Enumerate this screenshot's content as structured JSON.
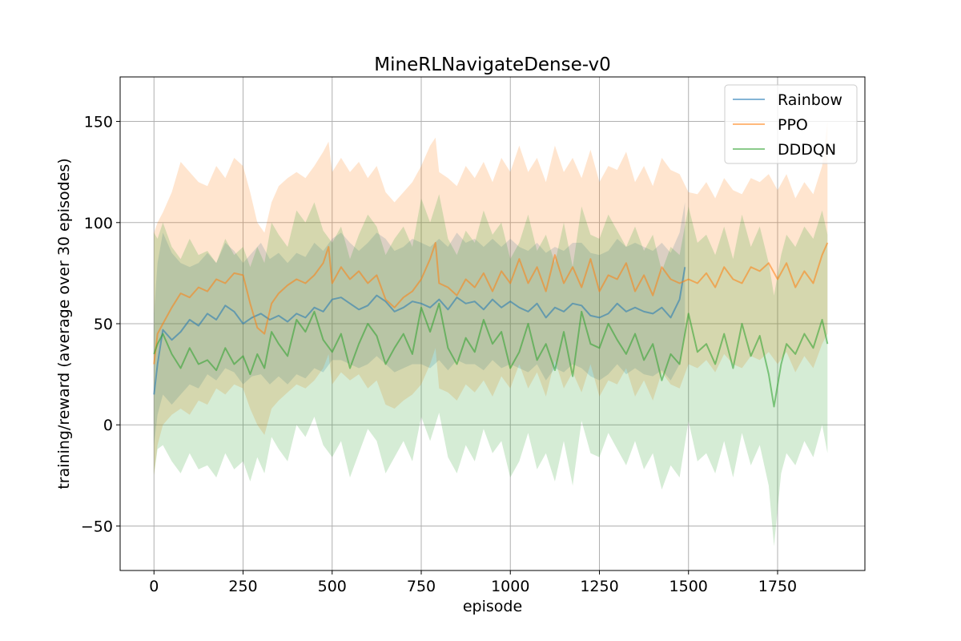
{
  "chart_data": {
    "type": "line",
    "title": "MineRLNavigateDense-v0",
    "xlabel": "episode",
    "ylabel": "training/reward (average over 30 episodes)",
    "xlim": [
      -95,
      1995
    ],
    "ylim": [
      -72,
      172
    ],
    "xticks": [
      0,
      250,
      500,
      750,
      1000,
      1250,
      1500,
      1750
    ],
    "yticks": [
      -50,
      0,
      50,
      100,
      150
    ],
    "xtick_labels": [
      "0",
      "250",
      "500",
      "750",
      "1000",
      "1250",
      "1500",
      "1750"
    ],
    "ytick_labels": [
      "−50",
      "0",
      "50",
      "100",
      "150"
    ],
    "grid": true,
    "legend_position": "top-right",
    "series": [
      {
        "name": "Rainbow",
        "color": "#1f77b4",
        "x": [
          0,
          10,
          25,
          50,
          75,
          100,
          125,
          150,
          175,
          200,
          225,
          250,
          275,
          300,
          325,
          350,
          375,
          400,
          425,
          450,
          475,
          500,
          525,
          550,
          575,
          600,
          625,
          650,
          675,
          700,
          725,
          750,
          775,
          800,
          825,
          850,
          875,
          900,
          925,
          950,
          975,
          1000,
          1025,
          1050,
          1075,
          1100,
          1125,
          1150,
          1175,
          1200,
          1225,
          1250,
          1275,
          1300,
          1325,
          1350,
          1375,
          1400,
          1425,
          1450,
          1475,
          1490
        ],
        "y": [
          15,
          30,
          47,
          42,
          46,
          52,
          49,
          55,
          52,
          59,
          56,
          50,
          53,
          55,
          52,
          54,
          51,
          55,
          53,
          58,
          56,
          62,
          63,
          60,
          57,
          59,
          64,
          61,
          56,
          58,
          61,
          60,
          58,
          62,
          57,
          63,
          60,
          61,
          57,
          62,
          58,
          61,
          58,
          56,
          60,
          53,
          58,
          56,
          60,
          59,
          54,
          53,
          55,
          60,
          56,
          58,
          56,
          55,
          58,
          53,
          62,
          78
        ],
        "upper": [
          55,
          80,
          95,
          85,
          80,
          78,
          80,
          85,
          80,
          90,
          86,
          80,
          85,
          90,
          82,
          85,
          80,
          85,
          83,
          90,
          86,
          92,
          95,
          90,
          86,
          90,
          95,
          92,
          86,
          88,
          92,
          90,
          88,
          92,
          88,
          95,
          90,
          92,
          88,
          92,
          88,
          92,
          88,
          86,
          90,
          85,
          88,
          86,
          90,
          90,
          85,
          84,
          86,
          92,
          88,
          90,
          88,
          86,
          90,
          85,
          95,
          110
        ],
        "lower": [
          -10,
          5,
          15,
          10,
          15,
          20,
          18,
          25,
          22,
          28,
          26,
          20,
          24,
          25,
          20,
          24,
          20,
          25,
          23,
          28,
          26,
          32,
          32,
          30,
          28,
          30,
          34,
          30,
          26,
          28,
          30,
          30,
          28,
          32,
          27,
          32,
          30,
          30,
          27,
          32,
          28,
          30,
          28,
          26,
          30,
          22,
          28,
          26,
          30,
          28,
          24,
          22,
          25,
          30,
          25,
          28,
          25,
          24,
          27,
          22,
          30,
          45
        ]
      },
      {
        "name": "PPO",
        "color": "#ff7f0e",
        "x": [
          0,
          10,
          25,
          50,
          75,
          100,
          125,
          150,
          175,
          200,
          225,
          250,
          270,
          290,
          310,
          330,
          350,
          375,
          400,
          425,
          450,
          475,
          490,
          500,
          525,
          550,
          575,
          600,
          625,
          650,
          675,
          700,
          725,
          750,
          775,
          790,
          800,
          825,
          850,
          875,
          900,
          925,
          950,
          975,
          1000,
          1025,
          1050,
          1075,
          1100,
          1125,
          1150,
          1175,
          1200,
          1225,
          1250,
          1275,
          1300,
          1325,
          1350,
          1375,
          1400,
          1425,
          1450,
          1475,
          1500,
          1525,
          1550,
          1575,
          1600,
          1625,
          1650,
          1675,
          1700,
          1725,
          1750,
          1775,
          1800,
          1825,
          1850,
          1875,
          1890
        ],
        "y": [
          30,
          45,
          50,
          58,
          65,
          63,
          68,
          66,
          72,
          70,
          75,
          74,
          60,
          48,
          45,
          60,
          65,
          69,
          72,
          70,
          74,
          80,
          88,
          70,
          78,
          72,
          76,
          70,
          74,
          62,
          58,
          63,
          66,
          72,
          82,
          90,
          70,
          68,
          64,
          72,
          68,
          75,
          66,
          76,
          70,
          82,
          70,
          78,
          66,
          84,
          70,
          78,
          68,
          82,
          66,
          74,
          72,
          80,
          66,
          74,
          64,
          78,
          72,
          70,
          72,
          70,
          75,
          68,
          78,
          72,
          70,
          78,
          76,
          80,
          72,
          80,
          68,
          76,
          70,
          84,
          90
        ],
        "upper": [
          95,
          100,
          105,
          115,
          130,
          125,
          120,
          118,
          128,
          122,
          132,
          128,
          115,
          100,
          95,
          110,
          118,
          122,
          125,
          122,
          128,
          135,
          140,
          125,
          132,
          125,
          130,
          122,
          128,
          115,
          110,
          115,
          120,
          128,
          138,
          142,
          125,
          122,
          118,
          128,
          122,
          130,
          120,
          132,
          125,
          138,
          125,
          132,
          120,
          138,
          125,
          132,
          122,
          136,
          120,
          128,
          126,
          135,
          120,
          128,
          118,
          132,
          126,
          124,
          115,
          114,
          120,
          112,
          122,
          116,
          114,
          122,
          120,
          124,
          116,
          124,
          112,
          120,
          114,
          128,
          150
        ],
        "lower": [
          -25,
          -10,
          0,
          5,
          8,
          5,
          12,
          10,
          18,
          15,
          20,
          18,
          8,
          0,
          -5,
          8,
          12,
          16,
          20,
          18,
          22,
          28,
          35,
          20,
          26,
          22,
          25,
          18,
          22,
          10,
          8,
          12,
          15,
          20,
          30,
          38,
          18,
          16,
          12,
          20,
          16,
          22,
          14,
          24,
          18,
          30,
          18,
          26,
          14,
          32,
          18,
          26,
          16,
          30,
          14,
          22,
          20,
          28,
          14,
          22,
          12,
          26,
          20,
          18,
          30,
          28,
          32,
          26,
          35,
          30,
          28,
          34,
          32,
          36,
          30,
          36,
          26,
          34,
          28,
          40,
          45
        ]
      },
      {
        "name": "DDDQN",
        "color": "#2ca02c",
        "x": [
          0,
          10,
          25,
          50,
          75,
          100,
          125,
          150,
          175,
          200,
          225,
          250,
          270,
          290,
          310,
          330,
          350,
          375,
          400,
          425,
          450,
          475,
          500,
          525,
          550,
          575,
          600,
          625,
          650,
          675,
          700,
          725,
          750,
          775,
          800,
          825,
          850,
          875,
          900,
          925,
          950,
          975,
          1000,
          1025,
          1050,
          1075,
          1100,
          1125,
          1150,
          1175,
          1200,
          1225,
          1250,
          1275,
          1300,
          1325,
          1350,
          1375,
          1400,
          1425,
          1450,
          1475,
          1500,
          1525,
          1550,
          1575,
          1600,
          1625,
          1650,
          1675,
          1700,
          1725,
          1740,
          1760,
          1775,
          1800,
          1825,
          1850,
          1875,
          1890
        ],
        "y": [
          35,
          40,
          45,
          35,
          28,
          38,
          30,
          32,
          27,
          38,
          30,
          34,
          25,
          35,
          28,
          46,
          40,
          34,
          52,
          46,
          56,
          42,
          36,
          45,
          28,
          40,
          50,
          44,
          30,
          38,
          45,
          35,
          58,
          46,
          60,
          38,
          30,
          43,
          36,
          52,
          40,
          46,
          28,
          36,
          50,
          32,
          40,
          27,
          46,
          24,
          56,
          40,
          38,
          50,
          42,
          35,
          45,
          32,
          40,
          22,
          35,
          30,
          55,
          36,
          40,
          30,
          45,
          28,
          50,
          34,
          44,
          25,
          9,
          30,
          40,
          35,
          45,
          38,
          52,
          40
        ],
        "upper": [
          95,
          92,
          100,
          88,
          82,
          92,
          84,
          86,
          80,
          92,
          84,
          88,
          78,
          88,
          80,
          100,
          94,
          88,
          106,
          100,
          110,
          96,
          90,
          98,
          82,
          94,
          104,
          98,
          84,
          92,
          98,
          88,
          112,
          100,
          114,
          92,
          84,
          96,
          90,
          106,
          94,
          100,
          82,
          90,
          104,
          86,
          94,
          80,
          100,
          78,
          108,
          94,
          92,
          104,
          96,
          88,
          98,
          86,
          94,
          76,
          88,
          84,
          108,
          90,
          94,
          84,
          98,
          82,
          104,
          88,
          98,
          80,
          64,
          84,
          94,
          88,
          98,
          92,
          106,
          94
        ],
        "lower": [
          -25,
          -12,
          -10,
          -18,
          -24,
          -14,
          -22,
          -20,
          -26,
          -14,
          -22,
          -18,
          -28,
          -16,
          -24,
          -6,
          -12,
          -18,
          0,
          -6,
          4,
          -10,
          -16,
          -8,
          -26,
          -14,
          -2,
          -8,
          -24,
          -16,
          -8,
          -18,
          4,
          -8,
          6,
          -16,
          -24,
          -10,
          -18,
          -2,
          -14,
          -8,
          -26,
          -18,
          -4,
          -22,
          -14,
          -28,
          -8,
          -30,
          2,
          -14,
          -16,
          -4,
          -12,
          -20,
          -8,
          -22,
          -14,
          -32,
          -20,
          -26,
          2,
          -18,
          -14,
          -24,
          -8,
          -26,
          -4,
          -20,
          -10,
          -30,
          -60,
          -24,
          -14,
          -20,
          -8,
          -16,
          0,
          -14
        ]
      }
    ]
  }
}
